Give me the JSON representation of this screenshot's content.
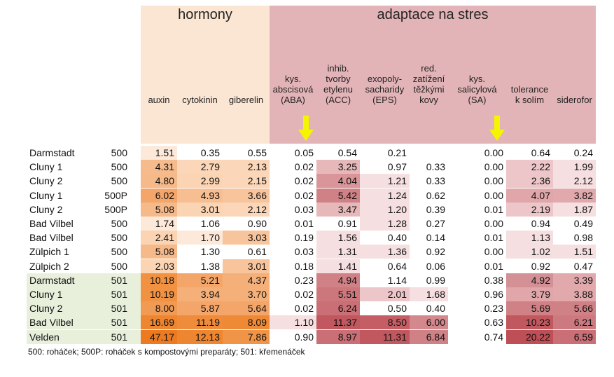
{
  "groups": {
    "hormones": "hormony",
    "stress": "adaptace na stres"
  },
  "columns": [
    "auxin",
    "cytokinin",
    "giberelin",
    "kys.\nabscisová\n(ABA)",
    "inhib.\ntvorby\netylenu\n(ACC)",
    "exopoly-\nsacharidy\n(EPS)",
    "red.\nzatížení\ntěžkými\nkovy",
    "kys.\nsalicylová\n(SA)",
    "tolerance\nk solím",
    "siderofor"
  ],
  "colors": {
    "hormone_header_bg": "#fbe6d3",
    "stress_header_bg": "#e3b4b7",
    "group501_bg": "#e8f0dc",
    "arrow": "#f5f500"
  },
  "rows": [
    {
      "site": "Darmstadt",
      "code": "500",
      "values": [
        "1.51",
        "0.35",
        "0.55",
        "0.05",
        "0.54",
        "0.21",
        "",
        "0.00",
        "0.64",
        "0.24"
      ]
    },
    {
      "site": "Cluny 1",
      "code": "500",
      "values": [
        "4.31",
        "2.79",
        "2.13",
        "0.02",
        "3.25",
        "0.97",
        "0.33",
        "0.00",
        "2.22",
        "1.99"
      ]
    },
    {
      "site": "Cluny 2",
      "code": "500",
      "values": [
        "4.80",
        "2.99",
        "2.15",
        "0.02",
        "4.04",
        "1.21",
        "0.33",
        "0.00",
        "2.36",
        "2.12"
      ]
    },
    {
      "site": "Cluny 1",
      "code": "500P",
      "values": [
        "6.02",
        "4.93",
        "3.66",
        "0.02",
        "5.42",
        "1.24",
        "0.62",
        "0.00",
        "4.07",
        "3.82"
      ]
    },
    {
      "site": "Cluny 2",
      "code": "500P",
      "values": [
        "5.08",
        "3.01",
        "2.12",
        "0.03",
        "3.47",
        "1.20",
        "0.39",
        "0.01",
        "2.19",
        "1.87"
      ]
    },
    {
      "site": "Bad Vilbel",
      "code": "500",
      "values": [
        "1.74",
        "1.06",
        "0.90",
        "0.01",
        "0.91",
        "1.28",
        "0.27",
        "0.00",
        "0.94",
        "0.49"
      ]
    },
    {
      "site": "Bad Vilbel",
      "code": "500",
      "values": [
        "2.41",
        "1.70",
        "3.03",
        "0.19",
        "1.56",
        "0.40",
        "0.14",
        "0.01",
        "1.13",
        "0.98"
      ]
    },
    {
      "site": "Zülpich 1",
      "code": "500",
      "values": [
        "5.08",
        "1.30",
        "0.61",
        "0.03",
        "1.31",
        "1.36",
        "0.92",
        "0.00",
        "1.02",
        "1.51"
      ]
    },
    {
      "site": "Zülpich 2",
      "code": "500",
      "values": [
        "2.03",
        "1.38",
        "3.01",
        "0.18",
        "1.41",
        "0.64",
        "0.06",
        "0.01",
        "0.92",
        "0.47"
      ]
    },
    {
      "site": "Darmstadt",
      "code": "501",
      "values": [
        "10.18",
        "5.21",
        "4.37",
        "0.23",
        "4.94",
        "1.14",
        "0.99",
        "0.38",
        "4.92",
        "3.39"
      ]
    },
    {
      "site": "Cluny 1",
      "code": "501",
      "values": [
        "10.19",
        "3.94",
        "3.70",
        "0.02",
        "5.51",
        "2.01",
        "1.68",
        "0.96",
        "3.79",
        "3.88"
      ]
    },
    {
      "site": "Cluny 2",
      "code": "501",
      "values": [
        "8.00",
        "5.87",
        "5.64",
        "0.02",
        "6.24",
        "0.50",
        "0.40",
        "0.23",
        "5.69",
        "5.66"
      ]
    },
    {
      "site": "Bad Vilbel",
      "code": "501",
      "values": [
        "16.69",
        "11.19",
        "8.09",
        "1.10",
        "11.37",
        "8.50",
        "6.00",
        "0.63",
        "10.23",
        "6.21"
      ]
    },
    {
      "site": "Velden",
      "code": "501",
      "values": [
        "47.17",
        "12.13",
        "7.86",
        "0.90",
        "8.97",
        "11.31",
        "6.84",
        "0.74",
        "20.22",
        "6.59"
      ]
    }
  ],
  "cell_colors": [
    [
      "#fde9d9",
      "#ffffff",
      "#ffffff",
      "#ffffff",
      "#ffffff",
      "#ffffff",
      "#ffffff",
      "#ffffff",
      "#ffffff",
      "#ffffff"
    ],
    [
      "#f6bb8c",
      "#fbd6b8",
      "#fbd6b8",
      "#ffffff",
      "#e6b8ba",
      "#ffffff",
      "#ffffff",
      "#ffffff",
      "#ecc6c8",
      "#f5dfe0"
    ],
    [
      "#f6b98a",
      "#fbd4b4",
      "#fbd6b8",
      "#ffffff",
      "#d99599",
      "#f5dfe0",
      "#ffffff",
      "#ffffff",
      "#ecc6c8",
      "#f5dfe0"
    ],
    [
      "#f4a66a",
      "#f7be92",
      "#f8c49c",
      "#ffffff",
      "#d08186",
      "#f5dfe0",
      "#ffffff",
      "#ffffff",
      "#e0a6a9",
      "#e2a9ac"
    ],
    [
      "#f6b98a",
      "#fbd4b4",
      "#fbd6b8",
      "#ffffff",
      "#e6b8ba",
      "#f5dfe0",
      "#ffffff",
      "#ffffff",
      "#ecc6c8",
      "#f5dfe0"
    ],
    [
      "#fde9d9",
      "#ffffff",
      "#ffffff",
      "#ffffff",
      "#ffffff",
      "#f5dfe0",
      "#ffffff",
      "#ffffff",
      "#ffffff",
      "#ffffff"
    ],
    [
      "#fbd4b4",
      "#fde9d9",
      "#f8c49c",
      "#ffffff",
      "#f5dfe0",
      "#ffffff",
      "#ffffff",
      "#ffffff",
      "#f5dfe0",
      "#ffffff"
    ],
    [
      "#f6b98a",
      "#ffffff",
      "#ffffff",
      "#ffffff",
      "#f5dfe0",
      "#f5dfe0",
      "#ffffff",
      "#ffffff",
      "#f5dfe0",
      "#f5dfe0"
    ],
    [
      "#fbd4b4",
      "#ffffff",
      "#f8c49c",
      "#ffffff",
      "#f5dfe0",
      "#ffffff",
      "#ffffff",
      "#ffffff",
      "#ffffff",
      "#ffffff"
    ],
    [
      "#f19142",
      "#f4a66a",
      "#f5b07a",
      "#ffffff",
      "#d08186",
      "#ffffff",
      "#ffffff",
      "#ffffff",
      "#d39095",
      "#e2a9ac"
    ],
    [
      "#f19142",
      "#f5b07a",
      "#f5b07a",
      "#ffffff",
      "#cc777c",
      "#ecc6c8",
      "#f5dfe0",
      "#ffffff",
      "#e0a6a9",
      "#e2a9ac"
    ],
    [
      "#f19a54",
      "#f4a66a",
      "#f4a66a",
      "#ffffff",
      "#c96f75",
      "#ffffff",
      "#ffffff",
      "#ffffff",
      "#d08186",
      "#d08186"
    ],
    [
      "#ee8530",
      "#ef8c3c",
      "#ee8a36",
      "#f5dfe0",
      "#c1585f",
      "#c45e64",
      "#d3888d",
      "#ffffff",
      "#c1585f",
      "#cc7a80"
    ],
    [
      "#ec7a20",
      "#ee8530",
      "#f09448",
      "#ffffff",
      "#c96f75",
      "#c1585f",
      "#d08186",
      "#ffffff",
      "#bf4f57",
      "#c96f75"
    ]
  ],
  "footnote": "500: roháček; 500P: roháček s kompostovými preparáty; 501: křemenáček"
}
